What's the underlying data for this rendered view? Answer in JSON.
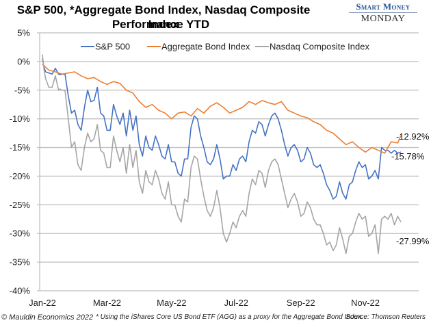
{
  "chart_data": {
    "type": "line",
    "title": "S&P 500, *Aggregate Bond Index, Nasdaq Composite Index",
    "subtitle": "Performance YTD",
    "xlabel": "",
    "ylabel": "",
    "ylim": [
      -40,
      5
    ],
    "y_ticks": [
      "5%",
      "0%",
      "-5%",
      "-10%",
      "-15%",
      "-20%",
      "-25%",
      "-30%",
      "-35%",
      "-40%"
    ],
    "y_tick_values": [
      5,
      0,
      -5,
      -10,
      -15,
      -20,
      -25,
      -30,
      -35,
      -40
    ],
    "x_ticks": [
      "Jan-22",
      "Mar-22",
      "May-22",
      "Jul-22",
      "Sep-22",
      "Nov-22"
    ],
    "x_tick_positions_months": [
      0,
      2,
      4,
      6,
      8,
      10
    ],
    "x_range_months": [
      0,
      11.1
    ],
    "grid": true,
    "legend_position": "top",
    "series": [
      {
        "name": "S&P 500",
        "color": "#4472c4",
        "end_label": "-15.78%",
        "x": [
          0,
          0.05,
          0.1,
          0.2,
          0.3,
          0.4,
          0.5,
          0.55,
          0.6,
          0.7,
          0.8,
          0.9,
          1.0,
          1.1,
          1.2,
          1.3,
          1.4,
          1.5,
          1.6,
          1.7,
          1.8,
          1.9,
          2.0,
          2.1,
          2.2,
          2.3,
          2.4,
          2.5,
          2.6,
          2.7,
          2.8,
          2.9,
          3.0,
          3.1,
          3.2,
          3.3,
          3.4,
          3.5,
          3.6,
          3.7,
          3.8,
          3.9,
          4.0,
          4.1,
          4.2,
          4.3,
          4.4,
          4.5,
          4.6,
          4.7,
          4.8,
          4.9,
          5.0,
          5.1,
          5.2,
          5.3,
          5.4,
          5.5,
          5.6,
          5.7,
          5.8,
          5.9,
          6.0,
          6.1,
          6.2,
          6.3,
          6.4,
          6.5,
          6.6,
          6.7,
          6.8,
          6.9,
          7.0,
          7.1,
          7.2,
          7.3,
          7.4,
          7.5,
          7.6,
          7.7,
          7.8,
          7.9,
          8.0,
          8.1,
          8.2,
          8.3,
          8.4,
          8.5,
          8.6,
          8.7,
          8.8,
          8.9,
          9.0,
          9.1,
          9.2,
          9.3,
          9.4,
          9.5,
          9.6,
          9.7,
          9.8,
          9.9,
          10.0,
          10.1,
          10.2,
          10.3,
          10.4,
          10.5,
          10.6,
          10.7,
          10.8,
          10.9,
          11.0,
          11.1
        ],
        "values": [
          0.5,
          -1.0,
          -1.8,
          -2.0,
          -2.2,
          -1.2,
          -2.2,
          -2.3,
          -2.2,
          -2.2,
          -6.0,
          -9.0,
          -8.5,
          -11.0,
          -12.0,
          -8.0,
          -5.0,
          -7.0,
          -6.8,
          -4.5,
          -9.0,
          -9.5,
          -12.0,
          -12.0,
          -7.5,
          -9.5,
          -11.0,
          -9.0,
          -13.0,
          -8.5,
          -12.0,
          -9.5,
          -14.5,
          -16.5,
          -13.0,
          -15.0,
          -15.5,
          -13.0,
          -14.5,
          -16.5,
          -17.0,
          -14.5,
          -17.5,
          -17.5,
          -19.5,
          -20.0,
          -17.0,
          -17.0,
          -11.5,
          -9.5,
          -10.0,
          -13.0,
          -15.0,
          -17.5,
          -18.0,
          -17.0,
          -14.5,
          -17.0,
          -20.5,
          -20.0,
          -20.0,
          -18.0,
          -19.0,
          -17.0,
          -16.5,
          -17.5,
          -14.0,
          -12.0,
          -12.5,
          -10.5,
          -11.0,
          -13.0,
          -11.0,
          -9.5,
          -9.0,
          -10.0,
          -12.0,
          -14.5,
          -16.5,
          -15.0,
          -14.5,
          -15.5,
          -17.5,
          -17.0,
          -15.0,
          -16.0,
          -18.0,
          -18.5,
          -18.0,
          -19.5,
          -21.5,
          -22.5,
          -24.0,
          -23.5,
          -21.0,
          -23.0,
          -24.0,
          -21.5,
          -21.0,
          -19.0,
          -17.5,
          -18.5,
          -18.0,
          -20.5,
          -20.0,
          -19.0,
          -20.5,
          -15.0,
          -15.5,
          -15.5,
          -16.0,
          -15.5,
          -16.0,
          -15.78
        ]
      },
      {
        "name": "Aggregate Bond Index",
        "color": "#ed7d31",
        "end_label": "-12.92%",
        "x": [
          0,
          0.2,
          0.4,
          0.6,
          0.8,
          1.0,
          1.2,
          1.4,
          1.6,
          1.8,
          2.0,
          2.2,
          2.4,
          2.6,
          2.8,
          3.0,
          3.2,
          3.4,
          3.6,
          3.8,
          4.0,
          4.2,
          4.4,
          4.6,
          4.8,
          5.0,
          5.2,
          5.4,
          5.6,
          5.8,
          6.0,
          6.2,
          6.4,
          6.6,
          6.8,
          7.0,
          7.2,
          7.4,
          7.6,
          7.8,
          8.0,
          8.2,
          8.4,
          8.6,
          8.8,
          9.0,
          9.2,
          9.4,
          9.6,
          9.8,
          10.0,
          10.2,
          10.4,
          10.6,
          10.8,
          11.0,
          11.1
        ],
        "values": [
          -0.5,
          -1.5,
          -1.8,
          -2.2,
          -2.0,
          -1.8,
          -2.5,
          -3.0,
          -2.8,
          -3.5,
          -4.0,
          -3.5,
          -3.8,
          -5.0,
          -5.5,
          -7.0,
          -8.0,
          -7.5,
          -8.5,
          -9.0,
          -10.0,
          -9.0,
          -8.8,
          -9.5,
          -8.2,
          -9.0,
          -7.8,
          -7.2,
          -8.0,
          -9.0,
          -8.5,
          -8.0,
          -7.0,
          -7.5,
          -6.8,
          -7.2,
          -7.5,
          -7.0,
          -8.5,
          -9.0,
          -9.5,
          -9.8,
          -10.5,
          -11.0,
          -12.0,
          -12.5,
          -13.5,
          -14.5,
          -14.0,
          -15.0,
          -15.8,
          -15.0,
          -15.5,
          -16.0,
          -14.0,
          -14.2,
          -12.92
        ]
      },
      {
        "name": "Nasdaq Composite Index",
        "color": "#a5a5a5",
        "end_label": "-27.99%",
        "x": [
          0,
          0.05,
          0.1,
          0.2,
          0.3,
          0.4,
          0.5,
          0.55,
          0.6,
          0.7,
          0.8,
          0.9,
          1.0,
          1.1,
          1.2,
          1.3,
          1.4,
          1.5,
          1.6,
          1.7,
          1.8,
          1.9,
          2.0,
          2.1,
          2.2,
          2.3,
          2.4,
          2.5,
          2.6,
          2.7,
          2.8,
          2.9,
          3.0,
          3.1,
          3.2,
          3.3,
          3.4,
          3.5,
          3.6,
          3.7,
          3.8,
          3.9,
          4.0,
          4.1,
          4.2,
          4.3,
          4.4,
          4.5,
          4.6,
          4.7,
          4.8,
          4.9,
          5.0,
          5.1,
          5.2,
          5.3,
          5.4,
          5.5,
          5.6,
          5.7,
          5.8,
          5.9,
          6.0,
          6.1,
          6.2,
          6.3,
          6.4,
          6.5,
          6.6,
          6.7,
          6.8,
          6.9,
          7.0,
          7.1,
          7.2,
          7.3,
          7.4,
          7.5,
          7.6,
          7.7,
          7.8,
          7.9,
          8.0,
          8.1,
          8.2,
          8.3,
          8.4,
          8.5,
          8.6,
          8.7,
          8.8,
          8.9,
          9.0,
          9.1,
          9.2,
          9.3,
          9.4,
          9.5,
          9.6,
          9.7,
          9.8,
          9.9,
          10.0,
          10.1,
          10.2,
          10.3,
          10.4,
          10.5,
          10.6,
          10.7,
          10.8,
          10.9,
          11.0,
          11.1
        ],
        "values": [
          1.2,
          -1.5,
          -3.0,
          -4.5,
          -4.5,
          -2.5,
          -5.0,
          -4.8,
          -5.0,
          -5.0,
          -10.0,
          -15.0,
          -14.0,
          -18.0,
          -19.0,
          -15.0,
          -12.5,
          -14.0,
          -13.5,
          -11.0,
          -15.5,
          -16.0,
          -18.5,
          -18.5,
          -13.0,
          -15.5,
          -17.5,
          -15.0,
          -19.5,
          -14.5,
          -18.5,
          -15.5,
          -21.0,
          -23.0,
          -19.0,
          -21.0,
          -21.5,
          -19.0,
          -20.5,
          -23.0,
          -24.0,
          -21.0,
          -25.0,
          -25.0,
          -27.0,
          -28.0,
          -24.0,
          -24.5,
          -18.5,
          -16.5,
          -17.0,
          -20.5,
          -23.5,
          -26.0,
          -27.0,
          -25.5,
          -22.5,
          -25.5,
          -30.0,
          -31.5,
          -30.0,
          -28.0,
          -29.0,
          -27.0,
          -26.0,
          -27.0,
          -23.0,
          -20.5,
          -21.5,
          -19.0,
          -19.5,
          -22.0,
          -19.0,
          -17.5,
          -17.0,
          -18.0,
          -20.5,
          -23.0,
          -25.5,
          -24.0,
          -23.0,
          -24.5,
          -27.0,
          -26.5,
          -24.5,
          -25.5,
          -27.5,
          -28.5,
          -28.5,
          -30.0,
          -32.0,
          -31.5,
          -33.0,
          -32.0,
          -29.0,
          -31.0,
          -33.5,
          -30.5,
          -30.0,
          -28.0,
          -26.5,
          -27.5,
          -27.0,
          -30.5,
          -30.0,
          -28.5,
          -33.5,
          -27.5,
          -27.0,
          -27.5,
          -26.5,
          -28.5,
          -27.0,
          -27.99
        ]
      }
    ]
  },
  "brand": {
    "line1": "Smart Money",
    "line2": "MONDAY"
  },
  "footer": {
    "copyright": "© Mauldin Economics 2022",
    "note": "* Using the iShares Core US Bond ETF (AGG) as a proxy for the Aggregate Bond Index.",
    "source": "Source: Thomson Reuters"
  }
}
